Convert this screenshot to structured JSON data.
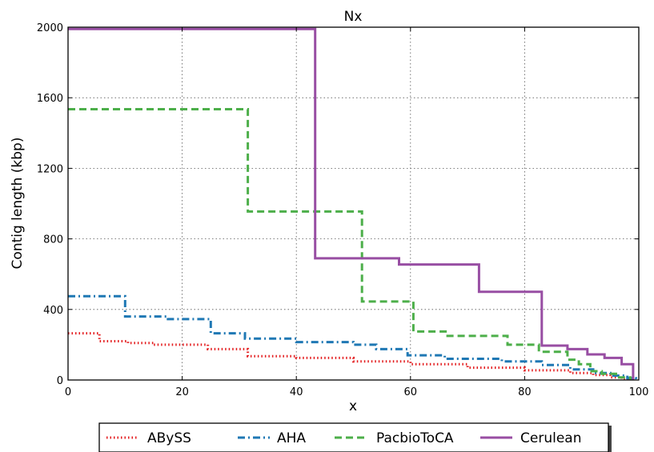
{
  "chart_data": {
    "type": "line",
    "title": "Nx",
    "xlabel": "x",
    "ylabel": "Contig length  (kbp)",
    "xlim": [
      0,
      100
    ],
    "ylim": [
      0,
      2000
    ],
    "xticks": [
      0,
      20,
      40,
      60,
      80,
      100
    ],
    "yticks": [
      0,
      400,
      800,
      1200,
      1600,
      2000
    ],
    "grid": true,
    "legend_position": "bottom-outside",
    "series": [
      {
        "name": "ABySS",
        "color": "#e31a1c",
        "dash": "dotted",
        "step": true,
        "points": [
          [
            0,
            265
          ],
          [
            5.5,
            265
          ],
          [
            5.5,
            220
          ],
          [
            10.5,
            220
          ],
          [
            10.5,
            210
          ],
          [
            15,
            210
          ],
          [
            15,
            200
          ],
          [
            24.5,
            200
          ],
          [
            24.5,
            175
          ],
          [
            31.5,
            175
          ],
          [
            31.5,
            135
          ],
          [
            40,
            135
          ],
          [
            40,
            125
          ],
          [
            50,
            125
          ],
          [
            50,
            105
          ],
          [
            60,
            105
          ],
          [
            60,
            90
          ],
          [
            70,
            90
          ],
          [
            70,
            70
          ],
          [
            80,
            70
          ],
          [
            80,
            55
          ],
          [
            88,
            55
          ],
          [
            88,
            40
          ],
          [
            92,
            40
          ],
          [
            92,
            28
          ],
          [
            95,
            28
          ],
          [
            95,
            15
          ],
          [
            97,
            15
          ],
          [
            97,
            5
          ],
          [
            98.5,
            5
          ],
          [
            98.5,
            0
          ]
        ]
      },
      {
        "name": "AHA",
        "color": "#1f78b4",
        "dash": "dashdot",
        "step": true,
        "points": [
          [
            0,
            475
          ],
          [
            10,
            475
          ],
          [
            10,
            360
          ],
          [
            17.5,
            360
          ],
          [
            17.5,
            345
          ],
          [
            25,
            345
          ],
          [
            25,
            265
          ],
          [
            31,
            265
          ],
          [
            31,
            235
          ],
          [
            40,
            235
          ],
          [
            40,
            215
          ],
          [
            50,
            215
          ],
          [
            50,
            200
          ],
          [
            54,
            200
          ],
          [
            54,
            175
          ],
          [
            59.5,
            175
          ],
          [
            59.5,
            140
          ],
          [
            66,
            140
          ],
          [
            66,
            120
          ],
          [
            76,
            120
          ],
          [
            76,
            105
          ],
          [
            83,
            105
          ],
          [
            83,
            85
          ],
          [
            88,
            85
          ],
          [
            88,
            60
          ],
          [
            92,
            60
          ],
          [
            92,
            40
          ],
          [
            95,
            40
          ],
          [
            95,
            25
          ],
          [
            98,
            25
          ],
          [
            98,
            10
          ],
          [
            99.5,
            10
          ],
          [
            99.5,
            0
          ]
        ]
      },
      {
        "name": "PacbioToCA",
        "color": "#4daf4a",
        "dash": "dashed",
        "step": true,
        "points": [
          [
            0,
            1535
          ],
          [
            31.5,
            1535
          ],
          [
            31.5,
            955
          ],
          [
            51.5,
            955
          ],
          [
            51.5,
            445
          ],
          [
            60.5,
            445
          ],
          [
            60.5,
            275
          ],
          [
            66.5,
            275
          ],
          [
            66.5,
            250
          ],
          [
            77,
            250
          ],
          [
            77,
            200
          ],
          [
            82.5,
            200
          ],
          [
            82.5,
            160
          ],
          [
            87.5,
            160
          ],
          [
            87.5,
            115
          ],
          [
            89.5,
            115
          ],
          [
            89.5,
            90
          ],
          [
            91.5,
            90
          ],
          [
            91.5,
            50
          ],
          [
            93.5,
            50
          ],
          [
            93.5,
            35
          ],
          [
            96,
            35
          ],
          [
            96,
            15
          ],
          [
            98.5,
            15
          ],
          [
            98.5,
            0
          ]
        ]
      },
      {
        "name": "Cerulean",
        "color": "#984ea3",
        "dash": "solid",
        "step": true,
        "points": [
          [
            0,
            1990
          ],
          [
            43.3,
            1990
          ],
          [
            43.3,
            690
          ],
          [
            58,
            690
          ],
          [
            58,
            655
          ],
          [
            72,
            655
          ],
          [
            72,
            500
          ],
          [
            83,
            500
          ],
          [
            83,
            195
          ],
          [
            87.5,
            195
          ],
          [
            87.5,
            175
          ],
          [
            91,
            175
          ],
          [
            91,
            145
          ],
          [
            94,
            145
          ],
          [
            94,
            125
          ],
          [
            97,
            125
          ],
          [
            97,
            90
          ],
          [
            99,
            90
          ],
          [
            99,
            0
          ]
        ]
      }
    ]
  }
}
